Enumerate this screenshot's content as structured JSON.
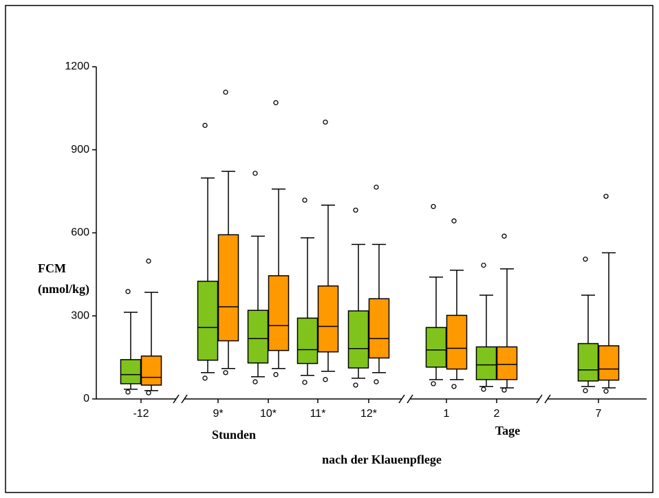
{
  "chart_data": {
    "type": "box",
    "y_label": [
      "FCM",
      "(nmol/kg)"
    ],
    "group_labels": [
      "Stunden",
      "Tage"
    ],
    "x_label": "nach der Klauenpflege",
    "categories": [
      "-12",
      "9*",
      "10*",
      "11*",
      "12*",
      "1",
      "2",
      "7"
    ],
    "ylim": [
      0,
      1200
    ],
    "yticks": [
      0,
      300,
      600,
      900,
      1200
    ],
    "series": [
      {
        "color": "#80c31c",
        "values": [
          {
            "low": 35,
            "q1": 55,
            "median": 88,
            "q3": 142,
            "high": 313,
            "outliers": [
              388,
              25
            ]
          },
          {
            "low": 95,
            "q1": 140,
            "median": 258,
            "q3": 425,
            "high": 798,
            "outliers": [
              988,
              75
            ]
          },
          {
            "low": 80,
            "q1": 130,
            "median": 218,
            "q3": 320,
            "high": 588,
            "outliers": [
              815,
              62
            ]
          },
          {
            "low": 85,
            "q1": 128,
            "median": 178,
            "q3": 292,
            "high": 582,
            "outliers": [
              718,
              60
            ]
          },
          {
            "low": 75,
            "q1": 112,
            "median": 182,
            "q3": 318,
            "high": 558,
            "outliers": [
              682,
              50
            ]
          },
          {
            "low": 70,
            "q1": 115,
            "median": 177,
            "q3": 258,
            "high": 440,
            "outliers": [
              695,
              55
            ]
          },
          {
            "low": 45,
            "q1": 70,
            "median": 123,
            "q3": 188,
            "high": 375,
            "outliers": [
              483,
              35
            ]
          },
          {
            "low": 45,
            "q1": 65,
            "median": 105,
            "q3": 200,
            "high": 375,
            "outliers": [
              505,
              30
            ]
          }
        ]
      },
      {
        "color": "#ff9900",
        "values": [
          {
            "low": 30,
            "q1": 50,
            "median": 78,
            "q3": 155,
            "high": 385,
            "outliers": [
              498,
              22
            ]
          },
          {
            "low": 110,
            "q1": 210,
            "median": 333,
            "q3": 593,
            "high": 822,
            "outliers": [
              1108,
              95
            ]
          },
          {
            "low": 110,
            "q1": 175,
            "median": 265,
            "q3": 445,
            "high": 758,
            "outliers": [
              1070,
              88
            ]
          },
          {
            "low": 100,
            "q1": 170,
            "median": 262,
            "q3": 408,
            "high": 700,
            "outliers": [
              1000,
              70
            ]
          },
          {
            "low": 95,
            "q1": 148,
            "median": 218,
            "q3": 362,
            "high": 558,
            "outliers": [
              765,
              62
            ]
          },
          {
            "low": 70,
            "q1": 108,
            "median": 183,
            "q3": 302,
            "high": 465,
            "outliers": [
              643,
              45
            ]
          },
          {
            "low": 40,
            "q1": 70,
            "median": 125,
            "q3": 188,
            "high": 470,
            "outliers": [
              588,
              32
            ]
          },
          {
            "low": 40,
            "q1": 68,
            "median": 108,
            "q3": 192,
            "high": 528,
            "outliers": [
              732,
              28
            ]
          }
        ]
      }
    ]
  }
}
